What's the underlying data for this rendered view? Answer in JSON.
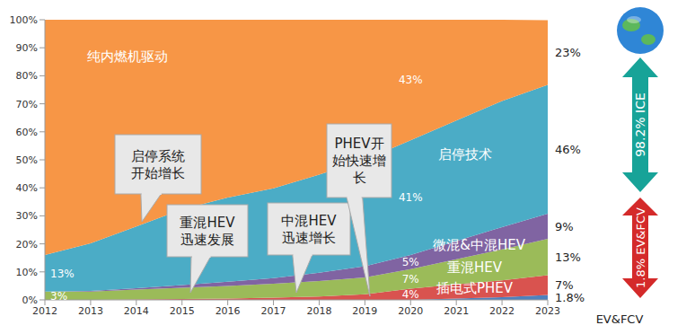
{
  "chart_data": {
    "type": "area",
    "stacked": true,
    "grid": false,
    "data_labels": true,
    "x": [
      2012,
      2013,
      2014,
      2015,
      2016,
      2017,
      2018,
      2019,
      2020,
      2021,
      2022,
      2023
    ],
    "xlim": [
      2012,
      2023
    ],
    "xticks": [
      2012,
      2013,
      2014,
      2015,
      2016,
      2017,
      2018,
      2019,
      2020,
      2021,
      2022,
      2023
    ],
    "ylim": [
      0,
      100
    ],
    "yticks": [
      {
        "value": 0,
        "label": "0%"
      },
      {
        "value": 10,
        "label": "10%"
      },
      {
        "value": 20,
        "label": "20%"
      },
      {
        "value": 30,
        "label": "30%"
      },
      {
        "value": 40,
        "label": "40%"
      },
      {
        "value": 50,
        "label": "50%"
      },
      {
        "value": 60,
        "label": "60%"
      },
      {
        "value": 70,
        "label": "70%"
      },
      {
        "value": 80,
        "label": "80%"
      },
      {
        "value": 90,
        "label": "90%"
      },
      {
        "value": 100,
        "label": "100%"
      }
    ],
    "series": [
      {
        "name": "EV&FCV",
        "color": "#4f81bd",
        "values": [
          0,
          0,
          0,
          0,
          0,
          0,
          0,
          0,
          0,
          0.5,
          1,
          1.8
        ],
        "value_labels": [
          null,
          null,
          null,
          null,
          null,
          null,
          null,
          null,
          null,
          null,
          null,
          "1.8%"
        ]
      },
      {
        "name": "插电式PHEV",
        "color": "#d9534f",
        "values": [
          0,
          0,
          0.2,
          0.3,
          0.5,
          0.8,
          1.2,
          2,
          4,
          5,
          6,
          7
        ],
        "value_labels": [
          null,
          null,
          null,
          null,
          null,
          null,
          null,
          null,
          "4%",
          null,
          null,
          "7%"
        ]
      },
      {
        "name": "重混HEV",
        "color": "#9bbb59",
        "values": [
          3,
          3,
          3.5,
          4,
          4.5,
          5,
          5.5,
          6,
          7,
          9,
          11,
          13
        ],
        "value_labels": [
          "3%",
          null,
          null,
          null,
          null,
          null,
          null,
          null,
          "7%",
          null,
          null,
          "13%"
        ]
      },
      {
        "name": "微混&中混HEV",
        "color": "#8064a2",
        "values": [
          0,
          0.2,
          0.5,
          1,
          1.5,
          2,
          3,
          4,
          5,
          6.5,
          8,
          9
        ],
        "value_labels": [
          null,
          null,
          null,
          null,
          null,
          null,
          null,
          null,
          "5%",
          null,
          null,
          "9%"
        ]
      },
      {
        "name": "启停技术",
        "color": "#4bacc6",
        "values": [
          13,
          17,
          22,
          27,
          30,
          32,
          35,
          38,
          41,
          43,
          45,
          46
        ],
        "value_labels": [
          "13%",
          null,
          null,
          null,
          null,
          null,
          null,
          null,
          "41%",
          null,
          null,
          "46%"
        ]
      },
      {
        "name": "纯内燃机驱动",
        "color": "#f79646",
        "values": [
          84,
          79.8,
          73.8,
          67.7,
          63.5,
          60.2,
          55.3,
          50,
          43,
          36,
          29,
          23
        ],
        "value_labels": [
          null,
          null,
          null,
          null,
          null,
          null,
          null,
          null,
          "43%",
          null,
          null,
          "23%"
        ]
      }
    ],
    "annotations": [
      [
        "启停系统",
        "开始增长"
      ],
      [
        "重混HEV",
        "迅速发展"
      ],
      [
        "中混HEV",
        "迅速增长"
      ],
      [
        "PHEV开",
        "始快速增",
        "长"
      ]
    ],
    "side_labels": [
      "98.2% ICE",
      "1.8% EV&FCV"
    ]
  }
}
